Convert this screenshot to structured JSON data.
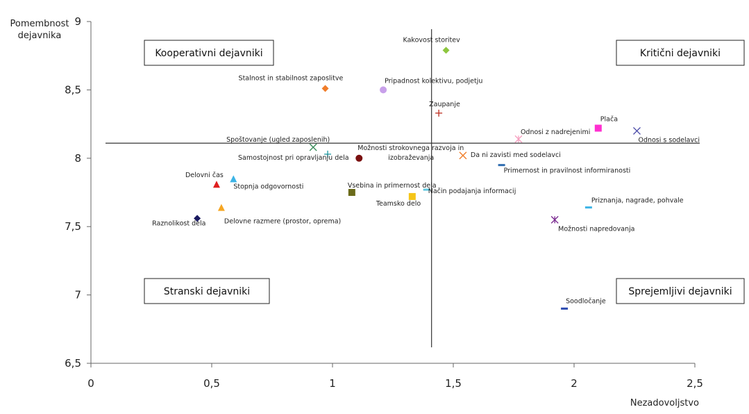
{
  "chart_data": {
    "type": "scatter",
    "xlabel": "Nezadovoljstvo",
    "ylabel": [
      "Pomembnost",
      "dejavnika"
    ],
    "xlim": [
      0,
      2.5
    ],
    "ylim": [
      6.5,
      9
    ],
    "xticks": [
      "0",
      "0,5",
      "1",
      "1,5",
      "2",
      "2,5"
    ],
    "yticks": [
      "6,5",
      "7",
      "7,5",
      "8",
      "8,5",
      "9"
    ],
    "grid": false,
    "reference_lines": {
      "x": 1.41,
      "y": 8.11
    },
    "quadrants": [
      {
        "label": "Kooperativni dejavniki",
        "position": "top-left"
      },
      {
        "label": "Kritični dejavniki",
        "position": "top-right"
      },
      {
        "label": "Stranski dejavniki",
        "position": "bottom-left"
      },
      {
        "label": "Sprejemljivi dejavniki",
        "position": "bottom-right"
      }
    ],
    "points": [
      {
        "label": "Kakovost storitev",
        "x": 1.47,
        "y": 8.79,
        "marker": "diamond",
        "color": "#8dc63f"
      },
      {
        "label": "Stalnost in stabilnost zaposlitve",
        "x": 0.97,
        "y": 8.51,
        "marker": "diamond",
        "color": "#f07d2a"
      },
      {
        "label": "Pripadnost kolektivu, podjetju",
        "x": 1.21,
        "y": 8.5,
        "marker": "circle",
        "color": "#c8a0ea"
      },
      {
        "label": "Zaupanje",
        "x": 1.44,
        "y": 8.33,
        "marker": "plus",
        "color": "#c0392b"
      },
      {
        "label": "Plača",
        "x": 2.1,
        "y": 8.22,
        "marker": "square",
        "color": "#ff2fd0"
      },
      {
        "label": "Odnosi s sodelavci",
        "x": 2.26,
        "y": 8.2,
        "marker": "x",
        "color": "#4a4aa8"
      },
      {
        "label": "Odnosi z nadrejenimi",
        "x": 1.77,
        "y": 8.14,
        "marker": "star",
        "color": "#f6a0c0"
      },
      {
        "label": "Spoštovanje (ugled zaposlenih)",
        "x": 0.92,
        "y": 8.08,
        "marker": "x",
        "color": "#3a8c5a"
      },
      {
        "label": "Samostojnost pri opravljanju dela",
        "x": 0.98,
        "y": 8.03,
        "marker": "plus",
        "color": "#2a9fa8"
      },
      {
        "label": "Možnosti strokovnega razvoja in izobraževanja",
        "x": 1.11,
        "y": 8.0,
        "marker": "circle",
        "color": "#7a1010"
      },
      {
        "label": "Da ni zavisti med sodelavci",
        "x": 1.54,
        "y": 8.02,
        "marker": "x",
        "color": "#f07d2a"
      },
      {
        "label": "Primernost in pravilnost informiranosti",
        "x": 1.7,
        "y": 7.95,
        "marker": "dash",
        "color": "#2f6db0"
      },
      {
        "label": "Delovni čas",
        "x": 0.52,
        "y": 7.81,
        "marker": "triangle",
        "color": "#e02020"
      },
      {
        "label": "Stopnja odgovornosti",
        "x": 0.59,
        "y": 7.85,
        "marker": "triangle",
        "color": "#3cb4e6"
      },
      {
        "label": "Vsebina in primernost dela",
        "x": 1.08,
        "y": 7.75,
        "marker": "square",
        "color": "#6b6b1a"
      },
      {
        "label": "Način podajanja informacij",
        "x": 1.39,
        "y": 7.77,
        "marker": "dash",
        "color": "#60c8e0"
      },
      {
        "label": "Teamsko delo",
        "x": 1.33,
        "y": 7.72,
        "marker": "square",
        "color": "#f5c518"
      },
      {
        "label": "Delovne razmere (prostor, oprema)",
        "x": 0.54,
        "y": 7.64,
        "marker": "triangle",
        "color": "#f5a623"
      },
      {
        "label": "Raznolikost dela",
        "x": 0.44,
        "y": 7.56,
        "marker": "diamond",
        "color": "#1a1a60"
      },
      {
        "label": "Priznanja, nagrade, pohvale",
        "x": 2.06,
        "y": 7.64,
        "marker": "dash",
        "color": "#3cb4e6"
      },
      {
        "label": "Možnosti napredovanja",
        "x": 1.92,
        "y": 7.55,
        "marker": "star",
        "color": "#7a2a90"
      },
      {
        "label": "Soodločanje",
        "x": 1.96,
        "y": 6.9,
        "marker": "dash",
        "color": "#2a4ab0"
      }
    ]
  }
}
